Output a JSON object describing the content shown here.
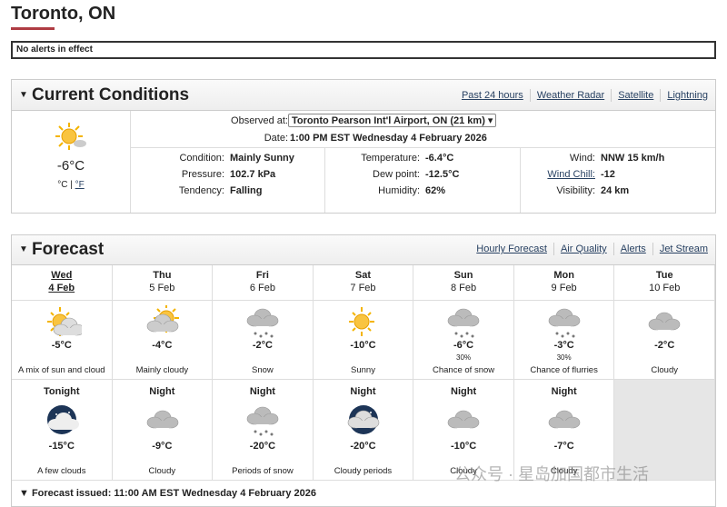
{
  "header": {
    "title": "Toronto, ON"
  },
  "alert": "No alerts in effect",
  "current": {
    "title": "Current Conditions",
    "links": [
      "Past 24 hours",
      "Weather Radar",
      "Satellite",
      "Lightning"
    ],
    "temperature": "-6°C",
    "unit_c": "°C",
    "unit_f": "°F",
    "observed_label": "Observed at:",
    "station": "Toronto Pearson Int'l Airport, ON (21 km)",
    "date_label": "Date:",
    "date": "1:00 PM EST Wednesday 4 February 2026",
    "fields": [
      [
        {
          "label": "Condition:",
          "value": "Mainly Sunny"
        },
        {
          "label": "Pressure:",
          "value": "102.7 kPa"
        },
        {
          "label": "Tendency:",
          "value": "Falling"
        }
      ],
      [
        {
          "label": "Temperature:",
          "value": "-6.4°C"
        },
        {
          "label": "Dew point:",
          "value": "-12.5°C"
        },
        {
          "label": "Humidity:",
          "value": "62%"
        }
      ],
      [
        {
          "label": "Wind:",
          "value": "NNW 15 km/h"
        },
        {
          "label": "Wind Chill:",
          "value": "-12"
        },
        {
          "label": "Visibility:",
          "value": "24 km"
        }
      ]
    ]
  },
  "forecast": {
    "title": "Forecast",
    "links": [
      "Hourly Forecast",
      "Air Quality",
      "Alerts",
      "Jet Stream"
    ],
    "days": [
      {
        "day": "Wed",
        "date": "4 Feb",
        "temp": "-5°C",
        "summary": "A mix of sun and cloud"
      },
      {
        "day": "Thu",
        "date": "5 Feb",
        "temp": "-4°C",
        "summary": "Mainly cloudy"
      },
      {
        "day": "Fri",
        "date": "6 Feb",
        "temp": "-2°C",
        "summary": "Snow"
      },
      {
        "day": "Sat",
        "date": "7 Feb",
        "temp": "-10°C",
        "summary": "Sunny"
      },
      {
        "day": "Sun",
        "date": "8 Feb",
        "temp": "-6°C",
        "pop": "30%",
        "summary": "Chance of snow"
      },
      {
        "day": "Mon",
        "date": "9 Feb",
        "temp": "-3°C",
        "pop": "30%",
        "summary": "Chance of flurries"
      },
      {
        "day": "Tue",
        "date": "10 Feb",
        "temp": "-2°C",
        "summary": "Cloudy"
      }
    ],
    "nights": [
      {
        "label": "Tonight",
        "temp": "-15°C",
        "summary": "A few clouds"
      },
      {
        "label": "Night",
        "temp": "-9°C",
        "summary": "Cloudy"
      },
      {
        "label": "Night",
        "temp": "-20°C",
        "summary": "Periods of snow"
      },
      {
        "label": "Night",
        "temp": "-20°C",
        "summary": "Cloudy periods"
      },
      {
        "label": "Night",
        "temp": "-10°C",
        "summary": "Cloudy"
      },
      {
        "label": "Night",
        "temp": "-7°C",
        "summary": "Cloudy"
      }
    ],
    "issued": "Forecast issued: 11:00 AM EST Wednesday 4 February 2026"
  },
  "watermark": "公众号 · 星岛加国都市生活"
}
